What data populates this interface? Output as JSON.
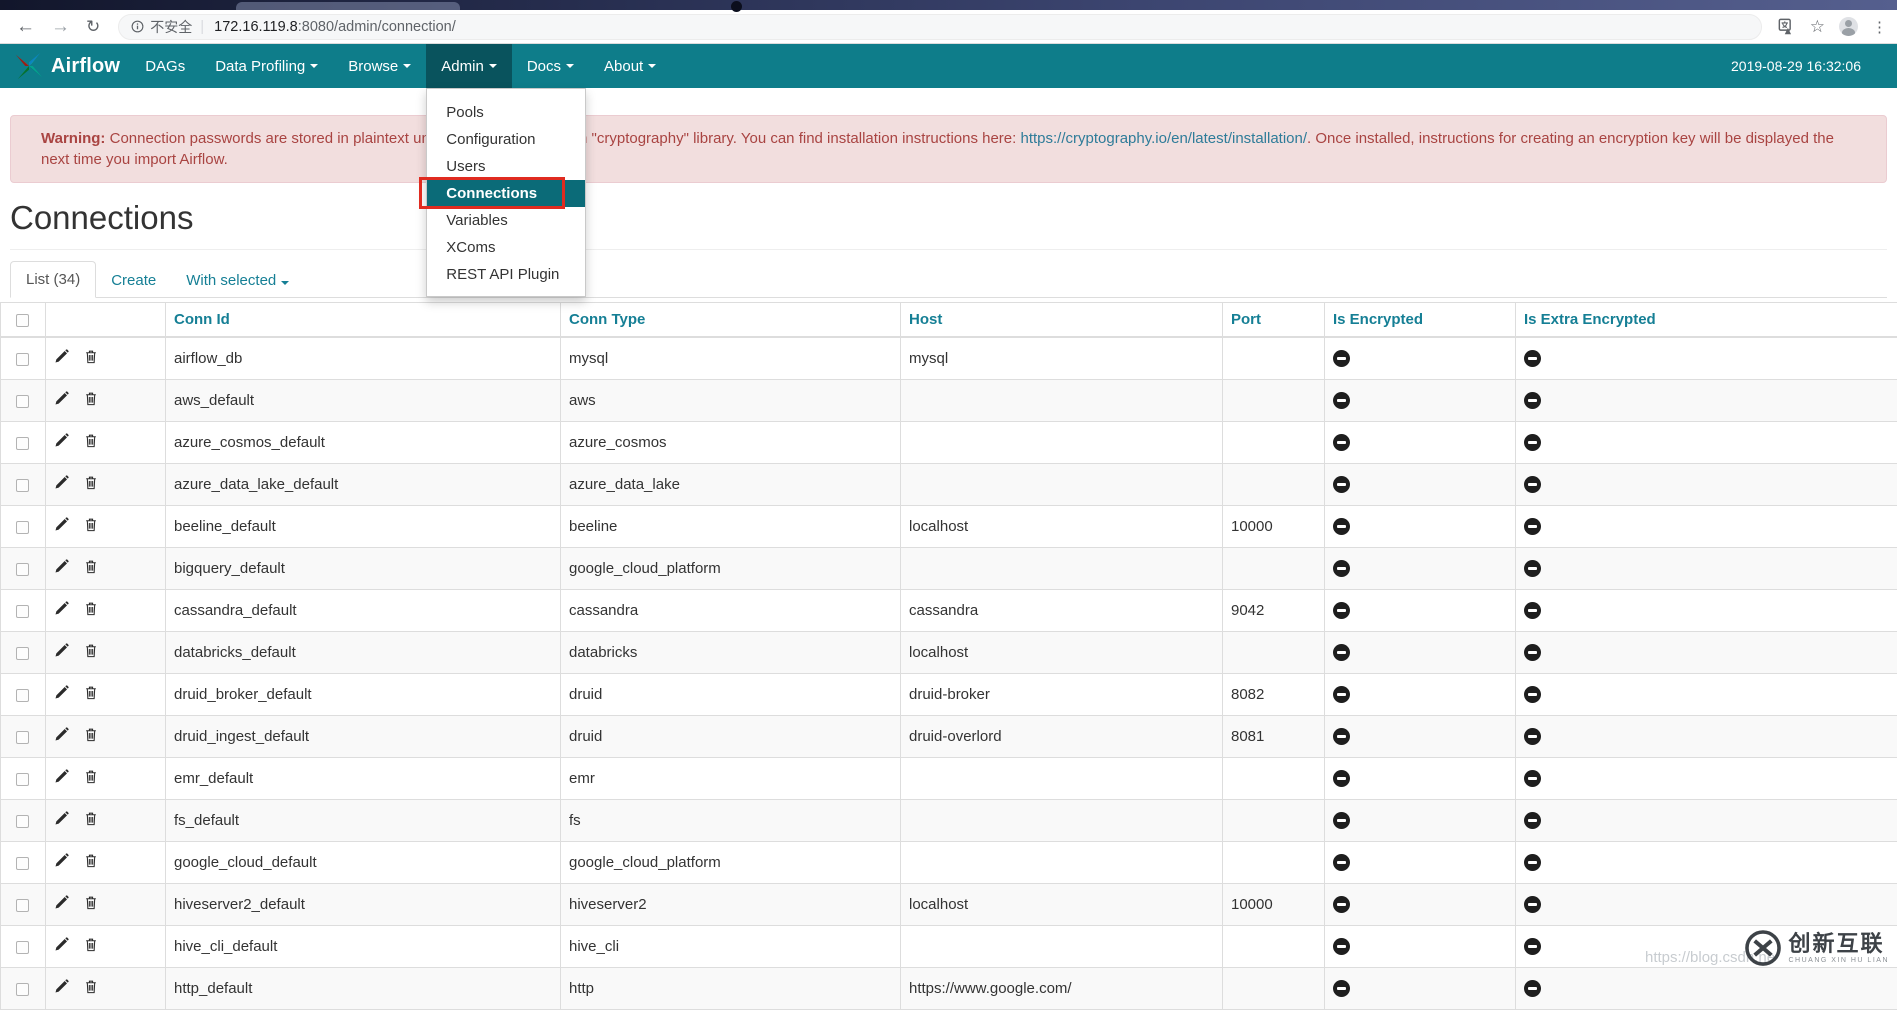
{
  "browser": {
    "security_label": "不安全",
    "url_host": "172.16.119.8",
    "url_path": ":8080/admin/connection/"
  },
  "navbar": {
    "brand": "Airflow",
    "timestamp": "2019-08-29 16:32:06",
    "items": [
      {
        "label": "DAGs",
        "caret": false,
        "active": false
      },
      {
        "label": "Data Profiling",
        "caret": true,
        "active": false
      },
      {
        "label": "Browse",
        "caret": true,
        "active": false
      },
      {
        "label": "Admin",
        "caret": true,
        "active": true
      },
      {
        "label": "Docs",
        "caret": true,
        "active": false
      },
      {
        "label": "About",
        "caret": true,
        "active": false
      }
    ]
  },
  "admin_menu": {
    "items": [
      {
        "label": "Pools",
        "active": false,
        "annotated": false
      },
      {
        "label": "Configuration",
        "active": false,
        "annotated": false
      },
      {
        "label": "Users",
        "active": false,
        "annotated": false
      },
      {
        "label": "Connections",
        "active": true,
        "annotated": true
      },
      {
        "label": "Variables",
        "active": false,
        "annotated": false
      },
      {
        "label": "XComs",
        "active": false,
        "annotated": false
      },
      {
        "label": "REST API Plugin",
        "active": false,
        "annotated": false
      }
    ]
  },
  "warning": {
    "prefix": "Warning:",
    "text_before_link": " Connection passwords are stored in plaintext until you install the Python \"cryptography\" library. You can find installation instructions here: ",
    "link_text": "https://cryptography.io/en/latest/installation/",
    "text_after_link": ". Once installed, instructions for creating an encryption key will be displayed the next time you import Airflow."
  },
  "page": {
    "title": "Connections"
  },
  "tabs": {
    "active_tab": "List (34)",
    "create_link": "Create",
    "with_selected": "With selected"
  },
  "table": {
    "columns": [
      "Conn Id",
      "Conn Type",
      "Host",
      "Port",
      "Is Encrypted",
      "Is Extra Encrypted"
    ],
    "rows": [
      {
        "conn_id": "airflow_db",
        "conn_type": "mysql",
        "host": "mysql",
        "port": "",
        "is_encrypted": true,
        "is_extra_encrypted": true
      },
      {
        "conn_id": "aws_default",
        "conn_type": "aws",
        "host": "",
        "port": "",
        "is_encrypted": true,
        "is_extra_encrypted": true
      },
      {
        "conn_id": "azure_cosmos_default",
        "conn_type": "azure_cosmos",
        "host": "",
        "port": "",
        "is_encrypted": true,
        "is_extra_encrypted": true
      },
      {
        "conn_id": "azure_data_lake_default",
        "conn_type": "azure_data_lake",
        "host": "",
        "port": "",
        "is_encrypted": true,
        "is_extra_encrypted": true
      },
      {
        "conn_id": "beeline_default",
        "conn_type": "beeline",
        "host": "localhost",
        "port": "10000",
        "is_encrypted": true,
        "is_extra_encrypted": true
      },
      {
        "conn_id": "bigquery_default",
        "conn_type": "google_cloud_platform",
        "host": "",
        "port": "",
        "is_encrypted": true,
        "is_extra_encrypted": true
      },
      {
        "conn_id": "cassandra_default",
        "conn_type": "cassandra",
        "host": "cassandra",
        "port": "9042",
        "is_encrypted": true,
        "is_extra_encrypted": true
      },
      {
        "conn_id": "databricks_default",
        "conn_type": "databricks",
        "host": "localhost",
        "port": "",
        "is_encrypted": true,
        "is_extra_encrypted": true
      },
      {
        "conn_id": "druid_broker_default",
        "conn_type": "druid",
        "host": "druid-broker",
        "port": "8082",
        "is_encrypted": true,
        "is_extra_encrypted": true
      },
      {
        "conn_id": "druid_ingest_default",
        "conn_type": "druid",
        "host": "druid-overlord",
        "port": "8081",
        "is_encrypted": true,
        "is_extra_encrypted": true
      },
      {
        "conn_id": "emr_default",
        "conn_type": "emr",
        "host": "",
        "port": "",
        "is_encrypted": true,
        "is_extra_encrypted": true
      },
      {
        "conn_id": "fs_default",
        "conn_type": "fs",
        "host": "",
        "port": "",
        "is_encrypted": true,
        "is_extra_encrypted": true
      },
      {
        "conn_id": "google_cloud_default",
        "conn_type": "google_cloud_platform",
        "host": "",
        "port": "",
        "is_encrypted": true,
        "is_extra_encrypted": true
      },
      {
        "conn_id": "hiveserver2_default",
        "conn_type": "hiveserver2",
        "host": "localhost",
        "port": "10000",
        "is_encrypted": true,
        "is_extra_encrypted": true
      },
      {
        "conn_id": "hive_cli_default",
        "conn_type": "hive_cli",
        "host": "",
        "port": "",
        "is_encrypted": true,
        "is_extra_encrypted": true
      },
      {
        "conn_id": "http_default",
        "conn_type": "http",
        "host": "https://www.google.com/",
        "port": "",
        "is_encrypted": true,
        "is_extra_encrypted": true
      }
    ]
  },
  "watermark": {
    "url_text": "https://blog.csdn.ne",
    "logo_text": "创新互联",
    "logo_subtext": "CHUANG XIN HU LIAN"
  },
  "colors": {
    "navbar": "#0e7d8a",
    "navbar_active": "#09535d",
    "link": "#157f95",
    "menu_highlight": "#0b6b78",
    "annotation_red": "#e02b20",
    "warning_bg": "#f2dede",
    "warning_border": "#ebccd1",
    "warning_text": "#a94442"
  }
}
